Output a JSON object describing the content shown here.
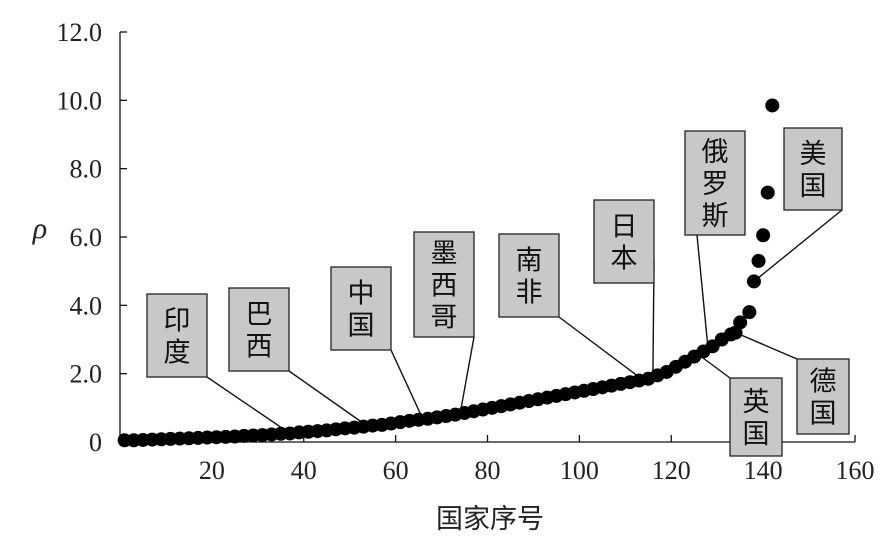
{
  "chart_data": {
    "type": "scatter",
    "title": "",
    "xlabel": "国家序号",
    "ylabel": "ρ",
    "xlim": [
      0,
      160
    ],
    "ylim": [
      0,
      12
    ],
    "x_ticks": [
      20,
      40,
      60,
      80,
      100,
      120,
      140,
      160
    ],
    "y_ticks": [
      0,
      2,
      4,
      6,
      8,
      10,
      12
    ],
    "x_tick_labels": [
      "20",
      "40",
      "60",
      "80",
      "100",
      "120",
      "140",
      "160"
    ],
    "y_tick_labels": [
      "0",
      "2.0",
      "4.0",
      "6.0",
      "8.0",
      "10.0",
      "12.0"
    ],
    "grid": false,
    "series": [
      {
        "color": "#000000",
        "points": [
          [
            1,
            0.05
          ],
          [
            3,
            0.05
          ],
          [
            5,
            0.06
          ],
          [
            7,
            0.07
          ],
          [
            9,
            0.08
          ],
          [
            11,
            0.09
          ],
          [
            13,
            0.1
          ],
          [
            15,
            0.11
          ],
          [
            17,
            0.12
          ],
          [
            19,
            0.13
          ],
          [
            21,
            0.14
          ],
          [
            23,
            0.15
          ],
          [
            25,
            0.16
          ],
          [
            27,
            0.18
          ],
          [
            29,
            0.19
          ],
          [
            31,
            0.2
          ],
          [
            33,
            0.22
          ],
          [
            35,
            0.24
          ],
          [
            37,
            0.25
          ],
          [
            39,
            0.28
          ],
          [
            41,
            0.3
          ],
          [
            43,
            0.32
          ],
          [
            45,
            0.34
          ],
          [
            47,
            0.37
          ],
          [
            49,
            0.4
          ],
          [
            51,
            0.42
          ],
          [
            53,
            0.45
          ],
          [
            55,
            0.48
          ],
          [
            57,
            0.5
          ],
          [
            59,
            0.54
          ],
          [
            61,
            0.58
          ],
          [
            63,
            0.62
          ],
          [
            65,
            0.65
          ],
          [
            67,
            0.68
          ],
          [
            69,
            0.72
          ],
          [
            71,
            0.76
          ],
          [
            73,
            0.8
          ],
          [
            75,
            0.85
          ],
          [
            77,
            0.9
          ],
          [
            79,
            0.95
          ],
          [
            81,
            1.0
          ],
          [
            83,
            1.05
          ],
          [
            85,
            1.1
          ],
          [
            87,
            1.15
          ],
          [
            89,
            1.2
          ],
          [
            91,
            1.25
          ],
          [
            93,
            1.3
          ],
          [
            95,
            1.35
          ],
          [
            97,
            1.4
          ],
          [
            99,
            1.45
          ],
          [
            101,
            1.5
          ],
          [
            103,
            1.55
          ],
          [
            105,
            1.6
          ],
          [
            107,
            1.65
          ],
          [
            109,
            1.7
          ],
          [
            111,
            1.75
          ],
          [
            113,
            1.8
          ],
          [
            115,
            1.85
          ],
          [
            117,
            1.95
          ],
          [
            119,
            2.05
          ],
          [
            121,
            2.2
          ],
          [
            123,
            2.35
          ],
          [
            125,
            2.5
          ],
          [
            127,
            2.65
          ],
          [
            129,
            2.8
          ],
          [
            131,
            3.0
          ],
          [
            133,
            3.15
          ],
          [
            134,
            3.2
          ],
          [
            135,
            3.5
          ],
          [
            137,
            3.8
          ],
          [
            138,
            4.7
          ],
          [
            139,
            5.3
          ],
          [
            140,
            6.05
          ],
          [
            141,
            7.3
          ],
          [
            142,
            9.85
          ]
        ]
      }
    ],
    "annotations": [
      {
        "id": "india",
        "text": "印度",
        "point": [
          37,
          0.25
        ]
      },
      {
        "id": "brazil",
        "text": "巴西",
        "point": [
          54,
          0.45
        ]
      },
      {
        "id": "china",
        "text": "中国",
        "point": [
          66,
          0.65
        ]
      },
      {
        "id": "mexico",
        "text": "墨西哥",
        "point": [
          74,
          0.8
        ]
      },
      {
        "id": "safrica",
        "text": "南非",
        "point": [
          114,
          1.8
        ]
      },
      {
        "id": "japan",
        "text": "日本",
        "point": [
          116,
          1.9
        ]
      },
      {
        "id": "russia",
        "text": "俄罗斯",
        "point": [
          128,
          2.75
        ]
      },
      {
        "id": "uk",
        "text": "英国",
        "point": [
          126,
          2.55
        ]
      },
      {
        "id": "germany",
        "text": "德国",
        "point": [
          134,
          3.2
        ]
      },
      {
        "id": "usa",
        "text": "美国",
        "point": [
          138,
          4.7
        ]
      }
    ]
  }
}
